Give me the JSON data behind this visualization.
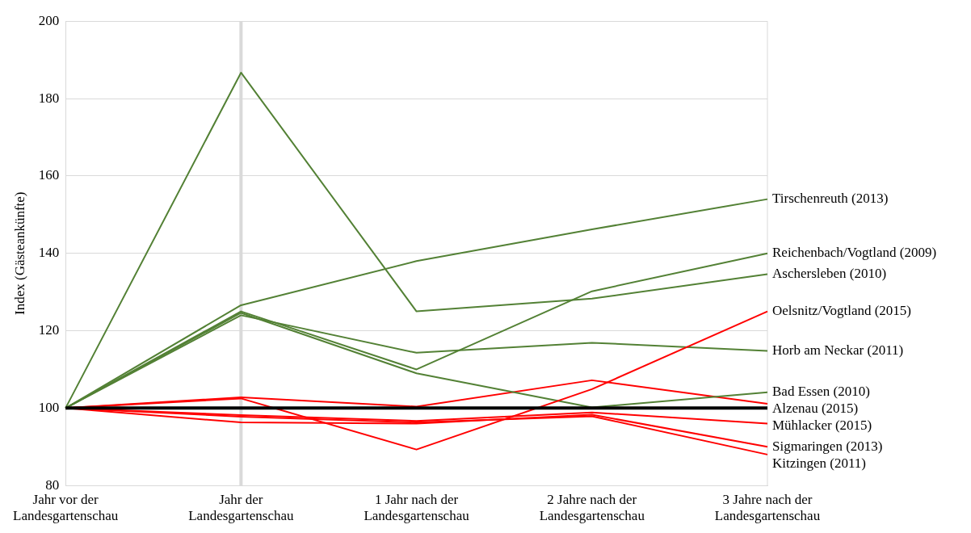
{
  "chart_data": {
    "type": "line",
    "ylabel": "Index (Gästeankünfte)",
    "categories": [
      "Jahr vor der Landesgartenschau",
      "Jahr der Landesgartenschau",
      "1 Jahr nach der Landesgartenschau",
      "2 Jahre nach der Landesgartenschau",
      "3 Jahre nach der Landesgartenschau"
    ],
    "series": [
      {
        "name": "Tirschenreuth (2013)",
        "color": "#538135",
        "values": [
          100,
          126.6,
          138,
          146.2,
          154
        ]
      },
      {
        "name": "Reichenbach/Vogtland (2009)",
        "color": "#538135",
        "values": [
          100,
          125,
          110,
          130.2,
          140
        ]
      },
      {
        "name": "Aschersleben (2010)",
        "color": "#538135",
        "values": [
          100,
          186.7,
          125,
          128.3,
          134.6
        ]
      },
      {
        "name": "Oelsnitz/Vogtland (2015)",
        "color": "#ff0000",
        "values": [
          100,
          102.5,
          89.3,
          104.9,
          125
        ]
      },
      {
        "name": "Horb am Neckar (2011)",
        "color": "#538135",
        "values": [
          100,
          124,
          114.3,
          116.9,
          114.8
        ]
      },
      {
        "name": "Bad Essen (2010)",
        "color": "#538135",
        "values": [
          100,
          124.6,
          109,
          100.2,
          104.1
        ]
      },
      {
        "name": "Alzenau (2015)",
        "color": "#ff0000",
        "values": [
          100,
          102.8,
          100.4,
          107.2,
          101.1
        ]
      },
      {
        "name": "Mühlacker (2015)",
        "color": "#ff0000",
        "values": [
          100,
          98.2,
          96.7,
          98.9,
          96
        ]
      },
      {
        "name": "Sigmaringen (2013)",
        "color": "#ff0000",
        "values": [
          100,
          96.3,
          96,
          98.3,
          90
        ]
      },
      {
        "name": "Kitzingen (2011)",
        "color": "#ff0000",
        "values": [
          100,
          97.8,
          96.3,
          97.9,
          88
        ]
      }
    ],
    "ref_lines": [
      {
        "axis": "y",
        "value": 100,
        "color": "#000000"
      },
      {
        "axis": "x",
        "value": "Jahr der Landesgartenschau",
        "color": "#d9d9d9"
      }
    ],
    "ylim": [
      80,
      200
    ],
    "yticks": [
      80,
      100,
      120,
      140,
      160,
      180,
      200
    ],
    "grid": "y",
    "legend": false,
    "marker": "none",
    "line_style": "solid"
  }
}
